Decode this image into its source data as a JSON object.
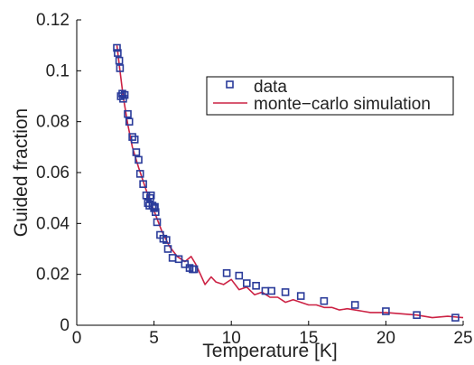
{
  "chart_data": {
    "type": "scatter",
    "xlabel": "Temperature [K]",
    "ylabel": "Guided fraction",
    "xlim": [
      0,
      25
    ],
    "ylim": [
      0,
      0.12
    ],
    "x_ticks": [
      "0",
      "5",
      "10",
      "15",
      "20",
      "25"
    ],
    "y_ticks": [
      "0",
      "0.02",
      "0.04",
      "0.06",
      "0.08",
      "0.1",
      "0.12"
    ],
    "grid": false,
    "legend_position": "top-right",
    "series": [
      {
        "name": "data",
        "kind": "markers",
        "marker": "square",
        "color": "#2a3b9a",
        "x": [
          2.6,
          2.65,
          2.75,
          2.8,
          2.85,
          2.95,
          3.0,
          3.1,
          3.3,
          3.4,
          3.6,
          3.75,
          3.85,
          4.0,
          4.1,
          4.3,
          4.5,
          4.6,
          4.7,
          4.75,
          4.8,
          4.9,
          5.0,
          5.05,
          5.1,
          5.2,
          5.4,
          5.6,
          5.8,
          5.9,
          6.2,
          6.6,
          7.0,
          7.3,
          7.5,
          7.6,
          9.7,
          10.5,
          11.0,
          11.6,
          12.2,
          12.6,
          13.5,
          14.5,
          16.0,
          18.0,
          20.0,
          22.0,
          24.5
        ],
        "y": [
          0.109,
          0.107,
          0.104,
          0.101,
          0.09,
          0.091,
          0.089,
          0.0905,
          0.083,
          0.08,
          0.074,
          0.073,
          0.068,
          0.065,
          0.0595,
          0.0555,
          0.051,
          0.048,
          0.047,
          0.05,
          0.051,
          0.047,
          0.046,
          0.0465,
          0.0445,
          0.0405,
          0.0355,
          0.034,
          0.0335,
          0.03,
          0.0265,
          0.026,
          0.024,
          0.0225,
          0.022,
          0.022,
          0.0205,
          0.0195,
          0.0165,
          0.0155,
          0.0135,
          0.0135,
          0.013,
          0.0115,
          0.0095,
          0.008,
          0.0055,
          0.004,
          0.003
        ]
      },
      {
        "name": "monte−carlo simulation",
        "kind": "line",
        "color": "#cc2244",
        "x": [
          2.6,
          2.8,
          3.0,
          3.3,
          3.6,
          4.0,
          4.5,
          5.0,
          5.5,
          6.0,
          6.5,
          7.0,
          7.4,
          7.7,
          8.0,
          8.3,
          8.7,
          9.0,
          9.5,
          10.0,
          10.5,
          11.0,
          11.5,
          12.0,
          12.5,
          13.0,
          13.5,
          14.0,
          14.5,
          15.0,
          15.5,
          16.0,
          16.5,
          17.0,
          17.5,
          18.0,
          18.5,
          19.0,
          19.5,
          20.0,
          21.0,
          22.0,
          23.0,
          24.0,
          25.0
        ],
        "y": [
          0.11,
          0.1,
          0.09,
          0.079,
          0.07,
          0.062,
          0.053,
          0.045,
          0.037,
          0.031,
          0.027,
          0.025,
          0.027,
          0.024,
          0.02,
          0.016,
          0.019,
          0.017,
          0.016,
          0.018,
          0.014,
          0.015,
          0.012,
          0.013,
          0.011,
          0.011,
          0.009,
          0.01,
          0.009,
          0.008,
          0.008,
          0.007,
          0.007,
          0.006,
          0.0065,
          0.006,
          0.0055,
          0.005,
          0.005,
          0.005,
          0.0045,
          0.004,
          0.003,
          0.0035,
          0.003
        ]
      }
    ]
  }
}
